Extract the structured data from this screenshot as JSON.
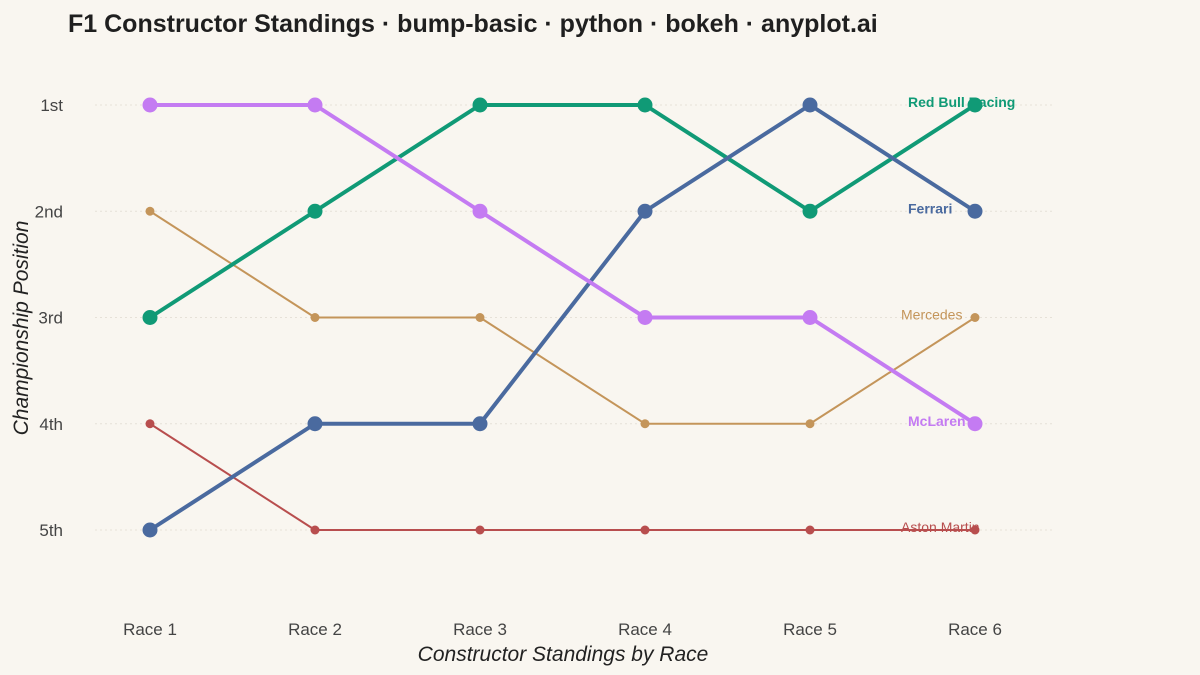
{
  "title": "F1 Constructor Standings · bump-basic · python · bokeh · anyplot.ai",
  "chart_data": {
    "type": "line",
    "chart_kind": "bump",
    "title": "F1 Constructor Standings · bump-basic · python · bokeh · anyplot.ai",
    "xlabel": "Constructor Standings by Race",
    "ylabel": "Championship Position",
    "categories": [
      "Race 1",
      "Race 2",
      "Race 3",
      "Race 4",
      "Race 5",
      "Race 6"
    ],
    "y_tick_labels": [
      "1st",
      "2nd",
      "3rd",
      "4th",
      "5th"
    ],
    "y_reversed": true,
    "ylim": [
      0.45,
      5.8
    ],
    "grid": "horizontal",
    "legend": "none (series labeled at line ends)",
    "series": [
      {
        "name": "Red Bull Racing",
        "values": [
          3,
          2,
          1,
          1,
          2,
          1
        ],
        "color": "#109a76",
        "emphasis": "highlighted"
      },
      {
        "name": "Ferrari",
        "values": [
          5,
          4,
          4,
          2,
          1,
          2
        ],
        "color": "#4a6a9f",
        "emphasis": "highlighted"
      },
      {
        "name": "Mercedes",
        "values": [
          2,
          3,
          3,
          4,
          4,
          3
        ],
        "color": "#c4955a",
        "emphasis": "muted"
      },
      {
        "name": "McLaren",
        "values": [
          1,
          1,
          2,
          3,
          3,
          4
        ],
        "color": "#c47bf2",
        "emphasis": "highlighted"
      },
      {
        "name": "Aston Martin",
        "values": [
          4,
          5,
          5,
          5,
          5,
          5
        ],
        "color": "#b84e4e",
        "emphasis": "muted"
      }
    ]
  }
}
